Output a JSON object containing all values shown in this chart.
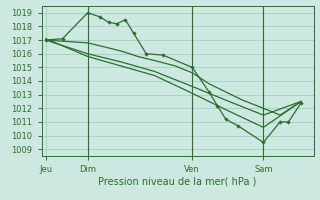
{
  "bg_color": "#cce8e0",
  "grid_color": "#99ccbb",
  "line_color": "#2d6e2d",
  "xlabel": "Pression niveau de la mer( hPa )",
  "ylim": [
    1008.5,
    1019.5
  ],
  "yticks": [
    1009,
    1010,
    1011,
    1012,
    1013,
    1014,
    1015,
    1016,
    1017,
    1018,
    1019
  ],
  "xtick_labels": [
    "Jeu",
    "Dim",
    "Ven",
    "Sam"
  ],
  "xtick_positions": [
    2,
    22,
    72,
    106
  ],
  "vline_positions": [
    22,
    72,
    106
  ],
  "xlim": [
    0,
    130
  ],
  "series1_x": [
    2,
    10,
    22,
    28,
    32,
    36,
    40,
    44,
    50,
    58,
    72,
    80,
    84,
    88,
    94,
    106,
    114,
    118,
    124
  ],
  "series1_y": [
    1017.0,
    1017.1,
    1019.0,
    1018.7,
    1018.3,
    1018.2,
    1018.5,
    1017.5,
    1016.0,
    1015.9,
    1015.0,
    1013.2,
    1012.2,
    1011.2,
    1010.7,
    1009.5,
    1011.0,
    1011.0,
    1012.4
  ],
  "series2_x": [
    2,
    22,
    30,
    38,
    46,
    54,
    64,
    72,
    80,
    88,
    96,
    106,
    114,
    124
  ],
  "series2_y": [
    1017.0,
    1016.8,
    1016.5,
    1016.2,
    1015.8,
    1015.5,
    1015.1,
    1014.6,
    1013.8,
    1013.2,
    1012.6,
    1012.0,
    1011.5,
    1012.5
  ],
  "series3_x": [
    2,
    22,
    38,
    54,
    72,
    88,
    106,
    124
  ],
  "series3_y": [
    1017.0,
    1016.0,
    1015.4,
    1014.7,
    1013.6,
    1012.6,
    1011.5,
    1012.5
  ],
  "series4_x": [
    2,
    22,
    38,
    54,
    72,
    88,
    106,
    124
  ],
  "series4_y": [
    1017.1,
    1015.8,
    1015.1,
    1014.4,
    1013.1,
    1011.9,
    1010.6,
    1012.5
  ]
}
